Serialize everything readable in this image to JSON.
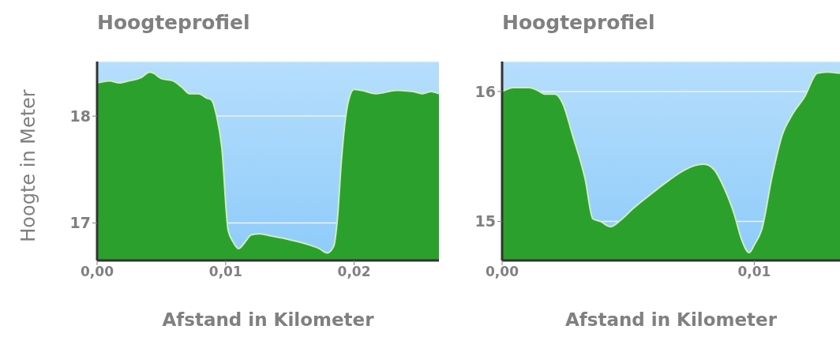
{
  "chart_data": [
    {
      "type": "area",
      "title": "Hoogteprofiel",
      "xlabel": "Afstand in Kilometer",
      "ylabel": "Hoogte in Meter",
      "color": "#2ca02c",
      "x": [
        0,
        0.00096,
        0.00174,
        0.0025,
        0.00342,
        0.00408,
        0.0044,
        0.005,
        0.0059,
        0.0066,
        0.0072,
        0.0079,
        0.0085,
        0.0089,
        0.0093,
        0.0097,
        0.0102,
        0.0106,
        0.011,
        0.0115,
        0.012,
        0.0127,
        0.0135,
        0.0148,
        0.0161,
        0.0173,
        0.0179,
        0.0184,
        0.0187,
        0.019,
        0.0195,
        0.02,
        0.0206,
        0.0217,
        0.0233,
        0.0246,
        0.0253,
        0.026,
        0.0266
      ],
      "values": [
        18.31,
        18.33,
        18.31,
        18.33,
        18.36,
        18.41,
        18.4,
        18.35,
        18.33,
        18.27,
        18.21,
        18.21,
        18.17,
        18.15,
        18.0,
        17.71,
        16.93,
        16.82,
        16.76,
        16.82,
        16.89,
        16.9,
        16.88,
        16.85,
        16.81,
        16.76,
        16.72,
        16.78,
        17.04,
        17.57,
        18.11,
        18.25,
        18.24,
        18.21,
        18.24,
        18.23,
        18.21,
        18.23,
        18.21
      ],
      "xlim": [
        0,
        0.0266
      ],
      "xticks": [
        {
          "value": 0,
          "label": "0,00"
        },
        {
          "value": 0.01,
          "label": "0,01"
        },
        {
          "value": 0.02,
          "label": "0,02"
        }
      ],
      "ylim": [
        16.65,
        18.51
      ],
      "yticks": [
        17,
        18
      ],
      "grid": "y"
    },
    {
      "type": "area",
      "title": "Hoogteprofiel",
      "xlabel": "Afstand in Kilometer",
      "color": "#2ca02c",
      "x": [
        0,
        0.00045,
        0.00107,
        0.00139,
        0.0017,
        0.0021,
        0.0024,
        0.0028,
        0.0033,
        0.0036,
        0.0039,
        0.0043,
        0.0047,
        0.0052,
        0.0059,
        0.0065,
        0.0071,
        0.0075,
        0.008,
        0.0084,
        0.0088,
        0.0092,
        0.0095,
        0.0098,
        0.01,
        0.0103,
        0.0107,
        0.0111,
        0.0115,
        0.012,
        0.0125,
        0.0129,
        0.0134
      ],
      "values": [
        16.0,
        16.03,
        16.03,
        16.01,
        15.98,
        15.98,
        15.91,
        15.66,
        15.32,
        15.02,
        15.0,
        14.96,
        15.01,
        15.1,
        15.21,
        15.3,
        15.38,
        15.42,
        15.44,
        15.4,
        15.26,
        15.06,
        14.86,
        14.76,
        14.82,
        14.94,
        15.34,
        15.66,
        15.82,
        15.96,
        16.14,
        16.15,
        16.14
      ],
      "xlim": [
        0,
        0.0134
      ],
      "xticks": [
        {
          "value": 0,
          "label": "0,00"
        },
        {
          "value": 0.01,
          "label": "0,01"
        }
      ],
      "ylim": [
        14.7,
        16.23
      ],
      "yticks": [
        15,
        16
      ],
      "grid": "y"
    }
  ]
}
